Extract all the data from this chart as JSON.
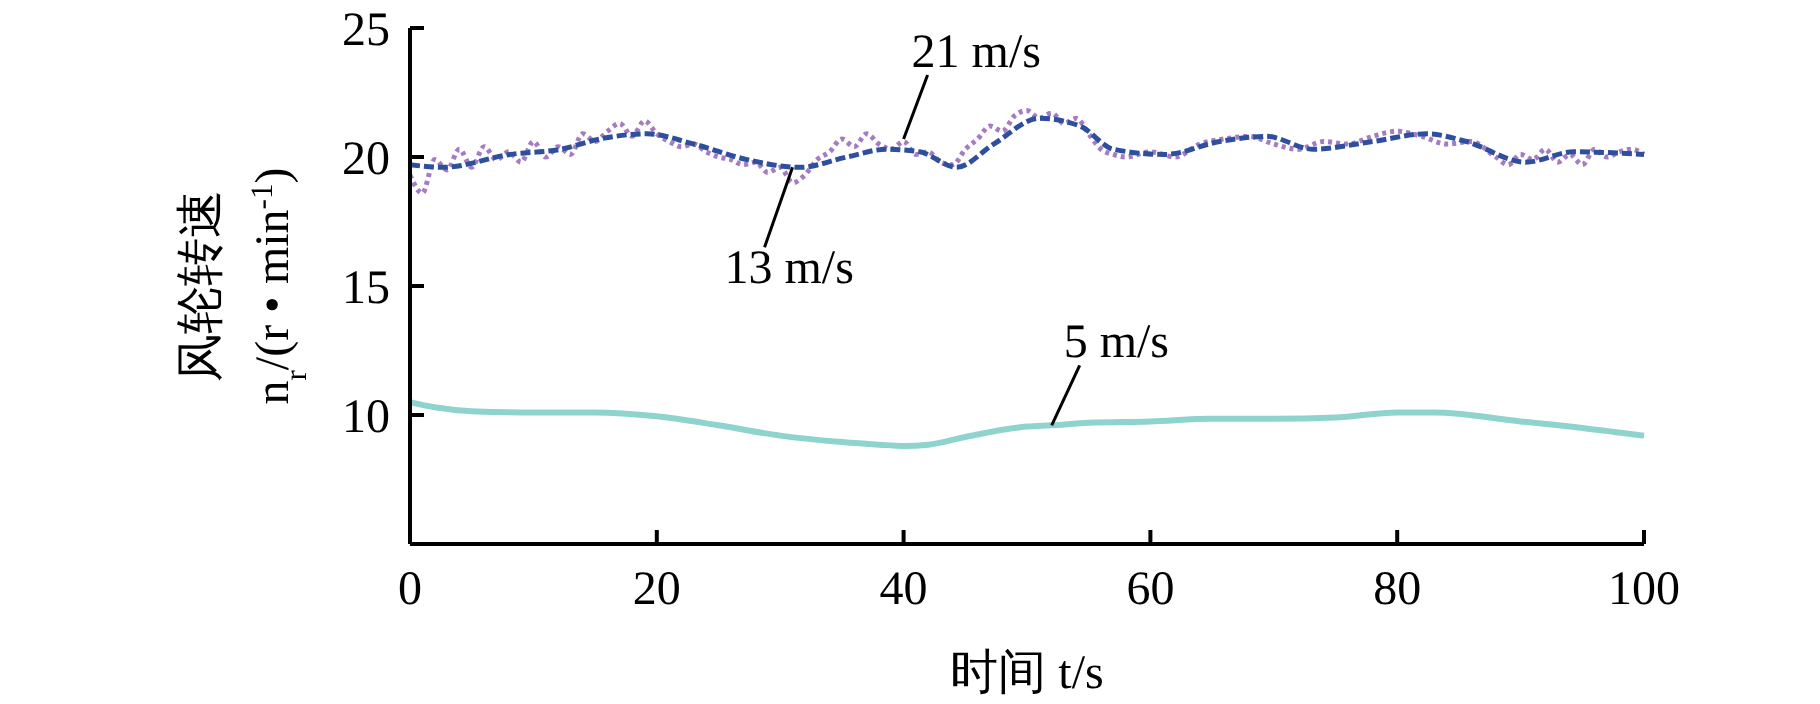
{
  "chart_data": {
    "type": "line",
    "xlabel": "时间 t/s",
    "ylabel": "风轮转速\nn$_{r}$/(r • min$^{-1}$)",
    "xlim": [
      0,
      100
    ],
    "ylim": [
      5,
      25
    ],
    "xticks": [
      0,
      20,
      40,
      60,
      80,
      100
    ],
    "yticks": [
      10,
      15,
      20,
      25
    ],
    "grid": false,
    "series": [
      {
        "color": "#a47cc2",
        "line_style": "dotted",
        "x": [
          0,
          1,
          2,
          3,
          4,
          5,
          6,
          7,
          8,
          9,
          10,
          11,
          12,
          13,
          14,
          15,
          16,
          17,
          18,
          19,
          20,
          21,
          22,
          23,
          24,
          25,
          26,
          27,
          28,
          29,
          30,
          31,
          32,
          33,
          34,
          35,
          36,
          37,
          38,
          39,
          40,
          41,
          42,
          43,
          44,
          45,
          46,
          47,
          48,
          49,
          50,
          51,
          52,
          53,
          54,
          55,
          56,
          57,
          58,
          60,
          62,
          64,
          66,
          68,
          70,
          72,
          74,
          76,
          78,
          80,
          82,
          84,
          86,
          88,
          89,
          90,
          91,
          92,
          93,
          94,
          95,
          96,
          97,
          98,
          99,
          100
        ],
        "values": [
          19.3,
          18.6,
          19.9,
          19.5,
          20.3,
          19.6,
          20.4,
          19.9,
          20.2,
          19.8,
          20.6,
          20.0,
          20.4,
          20.1,
          20.9,
          20.6,
          21.0,
          21.3,
          20.8,
          21.4,
          20.9,
          20.6,
          20.4,
          20.5,
          20.2,
          20.0,
          19.9,
          19.7,
          19.8,
          19.4,
          19.6,
          19.0,
          19.3,
          19.9,
          20.2,
          20.7,
          20.4,
          20.9,
          20.5,
          20.3,
          20.6,
          20.1,
          20.2,
          19.8,
          19.7,
          20.3,
          20.7,
          21.2,
          21.0,
          21.6,
          21.8,
          21.5,
          21.7,
          21.3,
          21.5,
          20.9,
          20.3,
          20.1,
          20.0,
          20.2,
          20.0,
          20.5,
          20.7,
          20.8,
          20.5,
          20.3,
          20.6,
          20.5,
          20.8,
          21.0,
          20.8,
          20.5,
          20.6,
          20.0,
          19.7,
          20.1,
          19.9,
          20.3,
          19.8,
          20.1,
          19.7,
          20.3,
          20.0,
          20.2,
          20.3,
          20.1
        ]
      },
      {
        "color": "#2d4f9e",
        "line_style": "dashed",
        "x": [
          0,
          2.7,
          8.1,
          12.2,
          15.4,
          19.2,
          23,
          27.3,
          31.6,
          35.4,
          38.6,
          41.3,
          44.3,
          47.3,
          51,
          54.3,
          57,
          61.2,
          65.6,
          69.4,
          73.2,
          78,
          82.4,
          85.6,
          90.4,
          94.3,
          100
        ],
        "values": [
          19.7,
          19.6,
          20.1,
          20.3,
          20.7,
          20.9,
          20.5,
          19.9,
          19.6,
          20.0,
          20.3,
          20.2,
          19.6,
          20.5,
          21.5,
          21.2,
          20.3,
          20.1,
          20.6,
          20.8,
          20.3,
          20.6,
          20.9,
          20.6,
          19.8,
          20.2,
          20.1
        ]
      },
      {
        "color": "#8fd3cf",
        "line_style": "solid",
        "x": [
          0,
          2,
          5,
          10,
          15,
          20,
          25,
          30,
          35,
          38,
          40,
          42,
          45,
          50,
          52,
          55,
          60,
          65,
          70,
          75,
          80,
          83,
          90,
          95,
          100
        ],
        "values": [
          10.5,
          10.3,
          10.15,
          10.1,
          10.1,
          9.95,
          9.6,
          9.2,
          8.95,
          8.85,
          8.8,
          8.85,
          9.15,
          9.55,
          9.6,
          9.7,
          9.75,
          9.85,
          9.85,
          9.9,
          10.1,
          10.1,
          9.75,
          9.5,
          9.2
        ]
      }
    ],
    "annotations": [
      {
        "text": "21 m/s",
        "x": 40,
        "y": 20.7
      },
      {
        "text": "13 m/s",
        "x": 31,
        "y": 19.6
      },
      {
        "text": "5 m/s",
        "x": 52,
        "y": 9.6
      }
    ]
  }
}
